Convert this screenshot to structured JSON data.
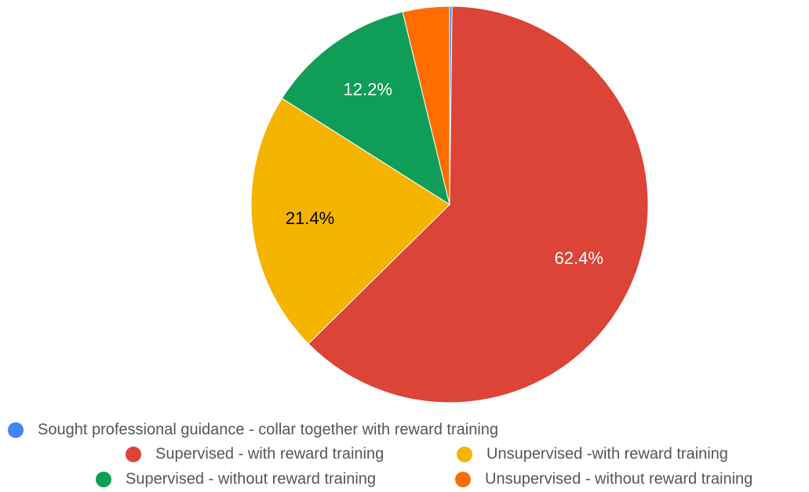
{
  "chart_data": {
    "type": "pie",
    "categories": [
      "Sought professional guidance - collar together with reward training",
      "Supervised - with reward training",
      "Unsupervised -with reward training",
      "Supervised - without reward training",
      "Unsupervised - without reward training"
    ],
    "values": [
      0.2,
      62.4,
      21.4,
      12.2,
      3.8
    ],
    "value_labels": [
      null,
      "62.4%",
      "21.4%",
      "12.2%",
      null
    ],
    "colors": [
      "#4285f4",
      "#db4437",
      "#f4b400",
      "#0f9d58",
      "#ff6d01"
    ],
    "legend": "bottom"
  }
}
